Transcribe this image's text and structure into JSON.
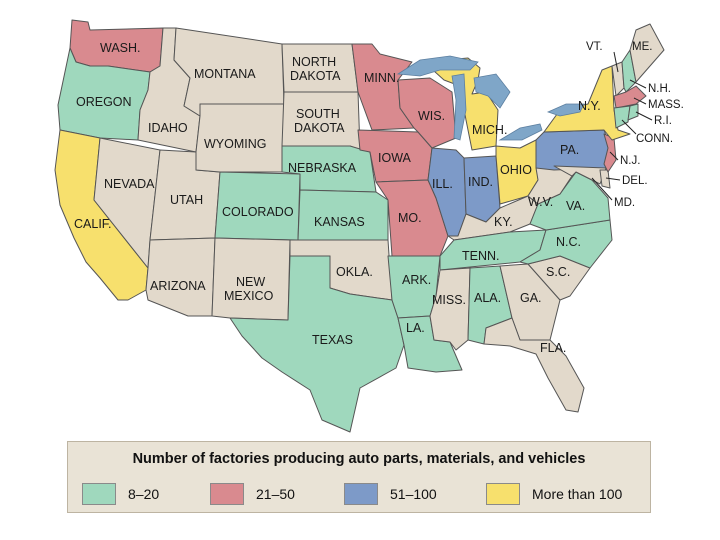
{
  "colors": {
    "background": "#ffffff",
    "water": "#d8dde0",
    "great_lakes": "#7fa6c8",
    "none": "#e2d9cb",
    "range_8_20": "#9fd8bd",
    "range_21_50": "#d98a8f",
    "range_51_100": "#7d9ac8",
    "more_than_100": "#f7e06d",
    "border": "#555555"
  },
  "states": {
    "wash": {
      "label": "WASH.",
      "category": "range_21_50"
    },
    "oregon": {
      "label": "OREGON",
      "category": "range_8_20"
    },
    "calif": {
      "label": "CALIF.",
      "category": "more_than_100"
    },
    "idaho": {
      "label": "IDAHO",
      "category": "none"
    },
    "nevada": {
      "label": "NEVADA",
      "category": "none"
    },
    "utah": {
      "label": "UTAH",
      "category": "none"
    },
    "arizona": {
      "label": "ARIZONA",
      "category": "none"
    },
    "montana": {
      "label": "MONTANA",
      "category": "none"
    },
    "wyoming": {
      "label": "WYOMING",
      "category": "none"
    },
    "colorado": {
      "label": "COLORADO",
      "category": "range_8_20"
    },
    "new_mexico": {
      "label_line1": "NEW",
      "label_line2": "MEXICO",
      "category": "none"
    },
    "north_dakota": {
      "label_line1": "NORTH",
      "label_line2": "DAKOTA",
      "category": "none"
    },
    "south_dakota": {
      "label_line1": "SOUTH",
      "label_line2": "DAKOTA",
      "category": "none"
    },
    "nebraska": {
      "label": "NEBRASKA",
      "category": "range_8_20"
    },
    "kansas": {
      "label": "KANSAS",
      "category": "range_8_20"
    },
    "okla": {
      "label": "OKLA.",
      "category": "none"
    },
    "texas": {
      "label": "TEXAS",
      "category": "range_8_20"
    },
    "minn": {
      "label": "MINN.",
      "category": "range_21_50"
    },
    "iowa": {
      "label": "IOWA",
      "category": "range_21_50"
    },
    "mo": {
      "label": "MO.",
      "category": "range_21_50"
    },
    "ark": {
      "label": "ARK.",
      "category": "range_8_20"
    },
    "la": {
      "label": "LA.",
      "category": "range_8_20"
    },
    "wis": {
      "label": "WIS.",
      "category": "range_21_50"
    },
    "ill": {
      "label": "ILL.",
      "category": "range_51_100"
    },
    "mich": {
      "label": "MICH.",
      "category": "more_than_100"
    },
    "ind": {
      "label": "IND.",
      "category": "range_51_100"
    },
    "ohio": {
      "label": "OHIO",
      "category": "more_than_100"
    },
    "ky": {
      "label": "KY.",
      "category": "none"
    },
    "tenn": {
      "label": "TENN.",
      "category": "range_8_20"
    },
    "miss": {
      "label": "MISS.",
      "category": "none"
    },
    "ala": {
      "label": "ALA.",
      "category": "range_8_20"
    },
    "ga": {
      "label": "GA.",
      "category": "none"
    },
    "fla": {
      "label": "FLA.",
      "category": "none"
    },
    "sc": {
      "label": "S.C.",
      "category": "none"
    },
    "nc": {
      "label": "N.C.",
      "category": "range_8_20"
    },
    "va": {
      "label": "VA.",
      "category": "range_8_20"
    },
    "wv": {
      "label": "W.V.",
      "category": "none"
    },
    "pa": {
      "label": "PA.",
      "category": "range_51_100"
    },
    "ny": {
      "label": "N.Y.",
      "category": "more_than_100"
    },
    "vt": {
      "label": "VT.",
      "category": "none"
    },
    "me": {
      "label": "ME.",
      "category": "none"
    },
    "nh": {
      "label": "N.H.",
      "category": "range_8_20"
    },
    "mass": {
      "label": "MASS.",
      "category": "range_21_50"
    },
    "ri": {
      "label": "R.I.",
      "category": "range_8_20"
    },
    "conn": {
      "label": "CONN.",
      "category": "range_8_20"
    },
    "nj": {
      "label": "N.J.",
      "category": "range_21_50"
    },
    "del": {
      "label": "DEL.",
      "category": "none"
    },
    "md": {
      "label": "MD.",
      "category": "none"
    }
  },
  "legend": {
    "title": "Number of factories producing auto parts, materials, and vehicles",
    "items": [
      {
        "label": "8–20",
        "color": "#9fd8bd"
      },
      {
        "label": "21–50",
        "color": "#d98a8f"
      },
      {
        "label": "51–100",
        "color": "#7d9ac8"
      },
      {
        "label": "More than 100",
        "color": "#f7e06d"
      }
    ]
  }
}
